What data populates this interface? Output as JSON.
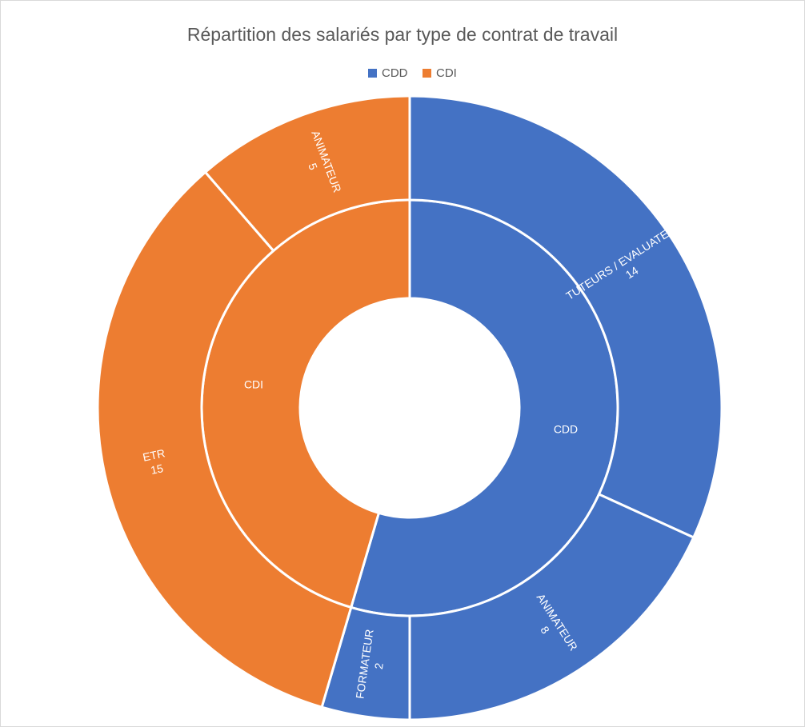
{
  "chart_data": {
    "type": "sunburst",
    "title": "Répartition des salariés par type de contrat de travail",
    "series": [
      {
        "name": "CDD",
        "color": "#4472c4",
        "children": [
          {
            "name": "TUTEURS / EVALUATEUR",
            "value": 14
          },
          {
            "name": "ANIMATEUR",
            "value": 8
          },
          {
            "name": "FORMATEUR",
            "value": 2
          }
        ]
      },
      {
        "name": "CDI",
        "color": "#ed7d31",
        "children": [
          {
            "name": "ETR",
            "value": 15
          },
          {
            "name": "ANIMATEUR",
            "value": 5
          }
        ]
      }
    ]
  }
}
